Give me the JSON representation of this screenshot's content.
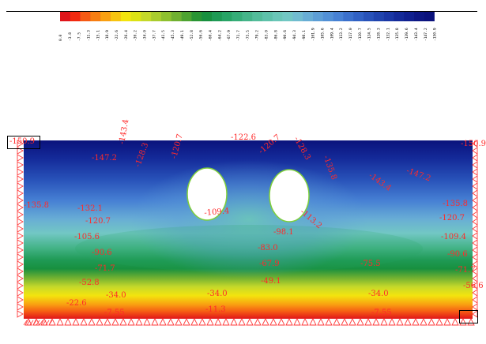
{
  "legend": {
    "colors": [
      "#e0151a",
      "#f22a10",
      "#f55a14",
      "#f77e12",
      "#f9a011",
      "#f7c410",
      "#f3e40e",
      "#dce214",
      "#c4d82a",
      "#a9cc2e",
      "#8ec02f",
      "#70b031",
      "#4ea331",
      "#2a9534",
      "#18903f",
      "#1f9a55",
      "#28a466",
      "#36ad78",
      "#45b489",
      "#53bc9a",
      "#5ec1aa",
      "#6ac6b8",
      "#72c7c4",
      "#71bcd0",
      "#68add5",
      "#5d9ed6",
      "#5290d6",
      "#4781d4",
      "#3b70cc",
      "#3161c4",
      "#2852b9",
      "#2044ae",
      "#1a37a5",
      "#142a99",
      "#10208f",
      "#0d1783",
      "#0b127c"
    ],
    "ticks": [
      "0.0",
      "-3.8",
      "-7.5",
      "-11.3",
      "-15.1",
      "-18.9",
      "-22.6",
      "-26.4",
      "-30.2",
      "-34.0",
      "-37.7",
      "-41.5",
      "-45.3",
      "-49.1",
      "-52.8",
      "-56.6",
      "-60.4",
      "-64.2",
      "-67.9",
      "-71.7",
      "-75.5",
      "-79.2",
      "-83.0",
      "-86.8",
      "-90.6",
      "-94.3",
      "-98.1",
      "-101.9",
      "-105.6",
      "-109.4",
      "-113.2",
      "-117.0",
      "-120.7",
      "-124.5",
      "-128.3",
      "-132.1",
      "-135.8",
      "-139.6",
      "-143.4",
      "-147.2",
      "-150.9"
    ]
  },
  "contour_labels": [
    {
      "id": "tl-corner",
      "text": "-150.9",
      "rot": 0
    },
    {
      "id": "tr-corner",
      "text": "-150.9",
      "rot": 0
    },
    {
      "id": "top-center",
      "text": "-122.6",
      "rot": 0
    },
    {
      "id": "top-left-a",
      "text": "-143.4",
      "rot": -80
    },
    {
      "id": "top-left-b",
      "text": "-128.3",
      "rot": -70
    },
    {
      "id": "top-left-c",
      "text": "-120.7",
      "rot": -75
    },
    {
      "id": "top-right-a",
      "text": "-128.3",
      "rot": 60
    },
    {
      "id": "top-right-b",
      "text": "-135.8",
      "rot": 70
    },
    {
      "id": "top-mid-right",
      "text": "-120.7",
      "rot": -40
    },
    {
      "id": "right-upper",
      "text": "-143.4",
      "rot": 35
    },
    {
      "id": "right-top",
      "text": "-147.2",
      "rot": 20
    },
    {
      "id": "left-upper",
      "text": "-147.2",
      "rot": 0
    },
    {
      "id": "left-side",
      "text": "-135.8",
      "rot": 0
    },
    {
      "id": "left-1",
      "text": "-132.1",
      "rot": 0
    },
    {
      "id": "left-2",
      "text": "-120.7",
      "rot": 0
    },
    {
      "id": "left-3",
      "text": "-105.6",
      "rot": 0
    },
    {
      "id": "left-4",
      "text": "-90.6",
      "rot": 0
    },
    {
      "id": "left-5",
      "text": "-71.7",
      "rot": 0
    },
    {
      "id": "left-6",
      "text": "-52.8",
      "rot": 0
    },
    {
      "id": "left-7",
      "text": "-34.0",
      "rot": 0
    },
    {
      "id": "left-8",
      "text": "-22.6",
      "rot": 0
    },
    {
      "id": "left-9",
      "text": "-7.55",
      "rot": 0
    },
    {
      "id": "center-1",
      "text": "-109.4",
      "rot": -5
    },
    {
      "id": "center-2",
      "text": "-113.2",
      "rot": 40
    },
    {
      "id": "center-3",
      "text": "-98.1",
      "rot": 0
    },
    {
      "id": "center-4",
      "text": "-83.0",
      "rot": 0
    },
    {
      "id": "center-5",
      "text": "-67.9",
      "rot": 0
    },
    {
      "id": "center-6",
      "text": "-49.1",
      "rot": 0
    },
    {
      "id": "center-7",
      "text": "-34.0",
      "rot": 0
    },
    {
      "id": "center-8",
      "text": "-11.3",
      "rot": 0
    },
    {
      "id": "right-1",
      "text": "-135.8",
      "rot": 0
    },
    {
      "id": "right-2",
      "text": "-120.7",
      "rot": 0
    },
    {
      "id": "right-3",
      "text": "-109.4",
      "rot": 0
    },
    {
      "id": "right-4",
      "text": "-90.6",
      "rot": 0
    },
    {
      "id": "right-5",
      "text": "-71.7",
      "rot": 0
    },
    {
      "id": "right-6",
      "text": "-75.5",
      "rot": 0
    },
    {
      "id": "right-7",
      "text": "-56.6",
      "rot": 0
    },
    {
      "id": "right-8",
      "text": "-34.0",
      "rot": 0
    },
    {
      "id": "right-9",
      "text": "-7.55",
      "rot": 0
    }
  ]
}
